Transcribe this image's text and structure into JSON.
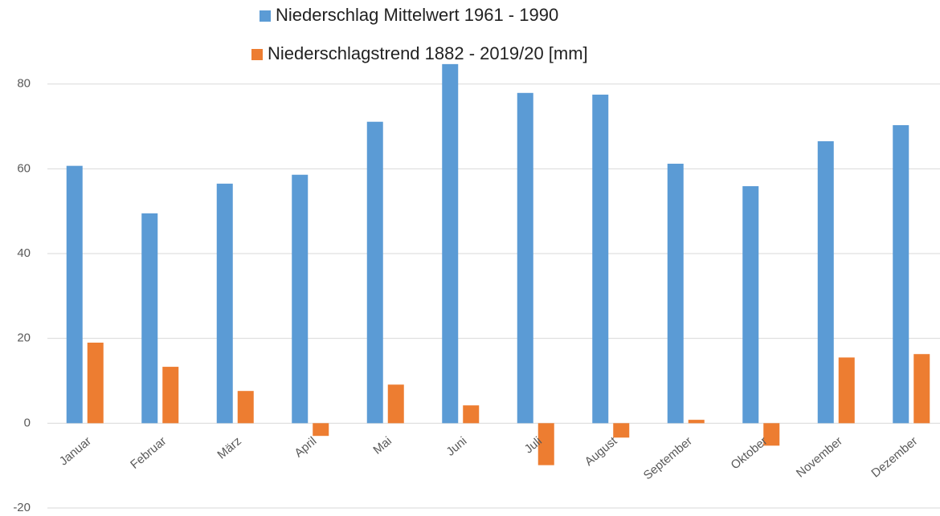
{
  "chart_data": {
    "type": "bar",
    "categories": [
      "Januar",
      "Februar",
      "März",
      "April",
      "Mai",
      "Juni",
      "Juli",
      "August",
      "September",
      "Oktober",
      "November",
      "Dezember"
    ],
    "series": [
      {
        "name": "Niederschlag Mittelwert 1961 - 1990",
        "color": "#5b9bd5",
        "values": [
          60.7,
          49.5,
          56.5,
          58.6,
          71.1,
          84.7,
          77.9,
          77.5,
          61.2,
          55.9,
          66.5,
          70.3
        ]
      },
      {
        "name": " Niederschlagstrend 1882 - 2019/20 [mm]",
        "color": "#ed7d31",
        "values": [
          19.0,
          13.3,
          7.6,
          -3.0,
          9.1,
          4.2,
          -9.9,
          -3.4,
          0.8,
          -5.3,
          15.5,
          16.3
        ]
      }
    ],
    "ylim": [
      -20,
      86
    ],
    "yticks": [
      -20,
      0,
      20,
      40,
      60,
      80
    ],
    "grid": true,
    "legend": "top"
  }
}
